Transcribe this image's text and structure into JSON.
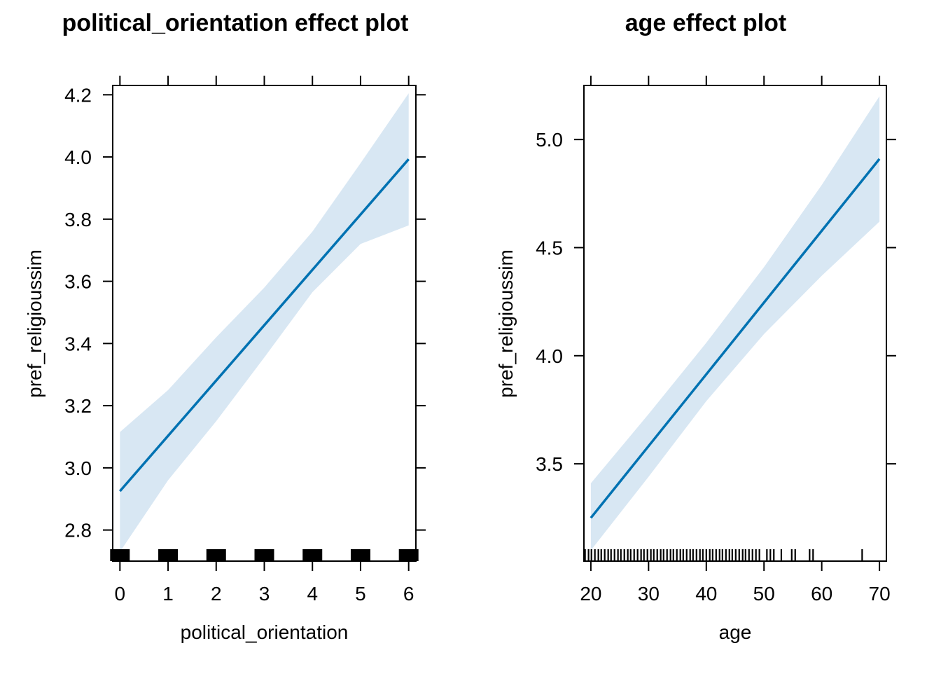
{
  "colors": {
    "line": "#0072B2",
    "band": "#D8E7F3",
    "axis": "#000000",
    "rug": "#000000",
    "background": "#FFFFFF"
  },
  "chart_data": [
    {
      "type": "line",
      "title": "political_orientation effect plot",
      "xlabel": "political_orientation",
      "ylabel": "pref_religioussim",
      "xlim": [
        -0.15,
        6.15
      ],
      "ylim": [
        2.7,
        4.23
      ],
      "x_ticks": [
        0,
        1,
        2,
        3,
        4,
        5,
        6
      ],
      "x_tick_labels": [
        "0",
        "1",
        "2",
        "3",
        "4",
        "5",
        "6"
      ],
      "y_ticks": [
        2.8,
        3.0,
        3.2,
        3.4,
        3.6,
        3.8,
        4.0,
        4.2
      ],
      "y_tick_labels": [
        "2.8",
        "3.0",
        "3.2",
        "3.4",
        "3.6",
        "3.8",
        "4.0",
        "4.2"
      ],
      "grid": false,
      "series": [
        {
          "x": [
            0,
            1,
            2,
            3,
            4,
            5,
            6
          ],
          "y": [
            2.925,
            3.103,
            3.281,
            3.459,
            3.637,
            3.815,
            3.993
          ],
          "lower": [
            2.73,
            2.96,
            3.15,
            3.355,
            3.565,
            3.72,
            3.78
          ],
          "upper": [
            3.115,
            3.25,
            3.42,
            3.58,
            3.76,
            3.98,
            4.205
          ]
        }
      ],
      "rug": [
        0,
        1,
        2,
        3,
        4,
        5,
        6
      ],
      "rug_style": "block"
    },
    {
      "type": "line",
      "title": "age effect plot",
      "xlabel": "age",
      "ylabel": "pref_religioussim",
      "xlim": [
        18.8,
        71.2
      ],
      "ylim": [
        3.05,
        5.25
      ],
      "x_ticks": [
        20,
        30,
        40,
        50,
        60,
        70
      ],
      "x_tick_labels": [
        "20",
        "30",
        "40",
        "50",
        "60",
        "70"
      ],
      "y_ticks": [
        3.5,
        4.0,
        4.5,
        5.0
      ],
      "y_tick_labels": [
        "3.5",
        "4.0",
        "4.5",
        "5.0"
      ],
      "grid": false,
      "series": [
        {
          "x": [
            20,
            30,
            40,
            50,
            60,
            70
          ],
          "y": [
            3.25,
            3.582,
            3.914,
            4.246,
            4.578,
            4.91
          ],
          "lower": [
            3.1,
            3.44,
            3.79,
            4.1,
            4.37,
            4.62
          ],
          "upper": [
            3.41,
            3.73,
            4.06,
            4.41,
            4.79,
            5.2
          ]
        }
      ],
      "rug": [
        19,
        19.6,
        20.1,
        20.7,
        21.3,
        21.8,
        22.4,
        23,
        23.5,
        24.1,
        24.7,
        25.2,
        25.8,
        26.4,
        26.9,
        27.5,
        28.1,
        28.7,
        29.2,
        29.8,
        30.4,
        30.9,
        31.5,
        32.1,
        32.6,
        33.2,
        33.8,
        34.3,
        34.9,
        35.5,
        36,
        36.6,
        37.2,
        37.7,
        38.3,
        38.9,
        39.4,
        40,
        40.6,
        41.1,
        41.7,
        42.3,
        42.8,
        43.4,
        44,
        44.5,
        45.1,
        45.7,
        46.3,
        46.8,
        47.4,
        48,
        48.6,
        49.2,
        50.5,
        51.1,
        51.7,
        53,
        54.8,
        55.4,
        57.9,
        58.5,
        67
      ],
      "rug_style": "line"
    }
  ]
}
